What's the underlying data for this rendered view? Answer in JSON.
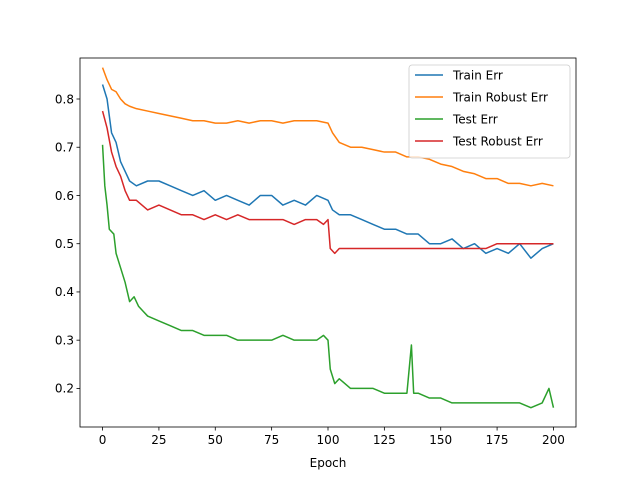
{
  "chart_data": {
    "type": "line",
    "title": "",
    "xlabel": "Epoch",
    "ylabel": "",
    "xlim": [
      -10,
      210
    ],
    "ylim": [
      0.12,
      0.885
    ],
    "xticks": [
      0,
      25,
      50,
      75,
      100,
      125,
      150,
      175,
      200
    ],
    "yticks": [
      0.2,
      0.3,
      0.4,
      0.5,
      0.6,
      0.7,
      0.8
    ],
    "grid": false,
    "legend_position": "upper right",
    "series": [
      {
        "name": "Train Err",
        "color": "#1f77b4",
        "points": [
          [
            0,
            0.83
          ],
          [
            2,
            0.8
          ],
          [
            4,
            0.73
          ],
          [
            6,
            0.71
          ],
          [
            8,
            0.67
          ],
          [
            10,
            0.65
          ],
          [
            12,
            0.63
          ],
          [
            15,
            0.62
          ],
          [
            20,
            0.63
          ],
          [
            25,
            0.63
          ],
          [
            30,
            0.62
          ],
          [
            35,
            0.61
          ],
          [
            40,
            0.6
          ],
          [
            45,
            0.61
          ],
          [
            50,
            0.59
          ],
          [
            55,
            0.6
          ],
          [
            60,
            0.59
          ],
          [
            65,
            0.58
          ],
          [
            70,
            0.6
          ],
          [
            75,
            0.6
          ],
          [
            80,
            0.58
          ],
          [
            85,
            0.59
          ],
          [
            90,
            0.58
          ],
          [
            95,
            0.6
          ],
          [
            100,
            0.59
          ],
          [
            102,
            0.57
          ],
          [
            105,
            0.56
          ],
          [
            110,
            0.56
          ],
          [
            115,
            0.55
          ],
          [
            120,
            0.54
          ],
          [
            125,
            0.53
          ],
          [
            130,
            0.53
          ],
          [
            135,
            0.52
          ],
          [
            140,
            0.52
          ],
          [
            145,
            0.5
          ],
          [
            150,
            0.5
          ],
          [
            155,
            0.51
          ],
          [
            160,
            0.49
          ],
          [
            165,
            0.5
          ],
          [
            170,
            0.48
          ],
          [
            175,
            0.49
          ],
          [
            180,
            0.48
          ],
          [
            185,
            0.5
          ],
          [
            190,
            0.47
          ],
          [
            195,
            0.49
          ],
          [
            200,
            0.5
          ]
        ]
      },
      {
        "name": "Train Robust Err",
        "color": "#ff7f0e",
        "points": [
          [
            0,
            0.865
          ],
          [
            2,
            0.84
          ],
          [
            4,
            0.82
          ],
          [
            6,
            0.815
          ],
          [
            8,
            0.8
          ],
          [
            10,
            0.79
          ],
          [
            12,
            0.785
          ],
          [
            15,
            0.78
          ],
          [
            20,
            0.775
          ],
          [
            25,
            0.77
          ],
          [
            30,
            0.765
          ],
          [
            35,
            0.76
          ],
          [
            40,
            0.755
          ],
          [
            45,
            0.755
          ],
          [
            50,
            0.75
          ],
          [
            55,
            0.75
          ],
          [
            60,
            0.755
          ],
          [
            65,
            0.75
          ],
          [
            70,
            0.755
          ],
          [
            75,
            0.755
          ],
          [
            80,
            0.75
          ],
          [
            85,
            0.755
          ],
          [
            90,
            0.755
          ],
          [
            95,
            0.755
          ],
          [
            100,
            0.75
          ],
          [
            102,
            0.73
          ],
          [
            105,
            0.71
          ],
          [
            110,
            0.7
          ],
          [
            115,
            0.7
          ],
          [
            120,
            0.695
          ],
          [
            125,
            0.69
          ],
          [
            130,
            0.69
          ],
          [
            135,
            0.68
          ],
          [
            140,
            0.68
          ],
          [
            145,
            0.675
          ],
          [
            150,
            0.665
          ],
          [
            155,
            0.66
          ],
          [
            160,
            0.65
          ],
          [
            165,
            0.645
          ],
          [
            170,
            0.635
          ],
          [
            175,
            0.635
          ],
          [
            180,
            0.625
          ],
          [
            185,
            0.625
          ],
          [
            190,
            0.62
          ],
          [
            195,
            0.625
          ],
          [
            200,
            0.62
          ]
        ]
      },
      {
        "name": "Test Err",
        "color": "#2ca02c",
        "points": [
          [
            0,
            0.705
          ],
          [
            1,
            0.62
          ],
          [
            2,
            0.58
          ],
          [
            3,
            0.53
          ],
          [
            5,
            0.52
          ],
          [
            6,
            0.48
          ],
          [
            8,
            0.45
          ],
          [
            10,
            0.42
          ],
          [
            12,
            0.38
          ],
          [
            14,
            0.39
          ],
          [
            16,
            0.37
          ],
          [
            18,
            0.36
          ],
          [
            20,
            0.35
          ],
          [
            25,
            0.34
          ],
          [
            30,
            0.33
          ],
          [
            35,
            0.32
          ],
          [
            40,
            0.32
          ],
          [
            45,
            0.31
          ],
          [
            50,
            0.31
          ],
          [
            55,
            0.31
          ],
          [
            60,
            0.3
          ],
          [
            65,
            0.3
          ],
          [
            70,
            0.3
          ],
          [
            75,
            0.3
          ],
          [
            80,
            0.31
          ],
          [
            85,
            0.3
          ],
          [
            90,
            0.3
          ],
          [
            95,
            0.3
          ],
          [
            98,
            0.31
          ],
          [
            100,
            0.3
          ],
          [
            101,
            0.24
          ],
          [
            103,
            0.21
          ],
          [
            105,
            0.22
          ],
          [
            110,
            0.2
          ],
          [
            115,
            0.2
          ],
          [
            120,
            0.2
          ],
          [
            125,
            0.19
          ],
          [
            130,
            0.19
          ],
          [
            135,
            0.19
          ],
          [
            137,
            0.29
          ],
          [
            138,
            0.19
          ],
          [
            140,
            0.19
          ],
          [
            145,
            0.18
          ],
          [
            150,
            0.18
          ],
          [
            155,
            0.17
          ],
          [
            160,
            0.17
          ],
          [
            165,
            0.17
          ],
          [
            170,
            0.17
          ],
          [
            175,
            0.17
          ],
          [
            180,
            0.17
          ],
          [
            185,
            0.17
          ],
          [
            190,
            0.16
          ],
          [
            195,
            0.17
          ],
          [
            198,
            0.2
          ],
          [
            200,
            0.16
          ]
        ]
      },
      {
        "name": "Test Robust Err",
        "color": "#d62728",
        "points": [
          [
            0,
            0.775
          ],
          [
            2,
            0.74
          ],
          [
            4,
            0.69
          ],
          [
            6,
            0.66
          ],
          [
            8,
            0.64
          ],
          [
            10,
            0.61
          ],
          [
            12,
            0.59
          ],
          [
            15,
            0.59
          ],
          [
            20,
            0.57
          ],
          [
            25,
            0.58
          ],
          [
            30,
            0.57
          ],
          [
            35,
            0.56
          ],
          [
            40,
            0.56
          ],
          [
            45,
            0.55
          ],
          [
            50,
            0.56
          ],
          [
            55,
            0.55
          ],
          [
            60,
            0.56
          ],
          [
            65,
            0.55
          ],
          [
            70,
            0.55
          ],
          [
            75,
            0.55
          ],
          [
            80,
            0.55
          ],
          [
            85,
            0.54
          ],
          [
            90,
            0.55
          ],
          [
            95,
            0.55
          ],
          [
            98,
            0.54
          ],
          [
            100,
            0.55
          ],
          [
            101,
            0.49
          ],
          [
            103,
            0.48
          ],
          [
            105,
            0.49
          ],
          [
            110,
            0.49
          ],
          [
            115,
            0.49
          ],
          [
            120,
            0.49
          ],
          [
            125,
            0.49
          ],
          [
            130,
            0.49
          ],
          [
            135,
            0.49
          ],
          [
            140,
            0.49
          ],
          [
            145,
            0.49
          ],
          [
            150,
            0.49
          ],
          [
            155,
            0.49
          ],
          [
            160,
            0.49
          ],
          [
            165,
            0.49
          ],
          [
            170,
            0.49
          ],
          [
            175,
            0.5
          ],
          [
            180,
            0.5
          ],
          [
            185,
            0.5
          ],
          [
            190,
            0.5
          ],
          [
            195,
            0.5
          ],
          [
            200,
            0.5
          ]
        ]
      }
    ]
  }
}
